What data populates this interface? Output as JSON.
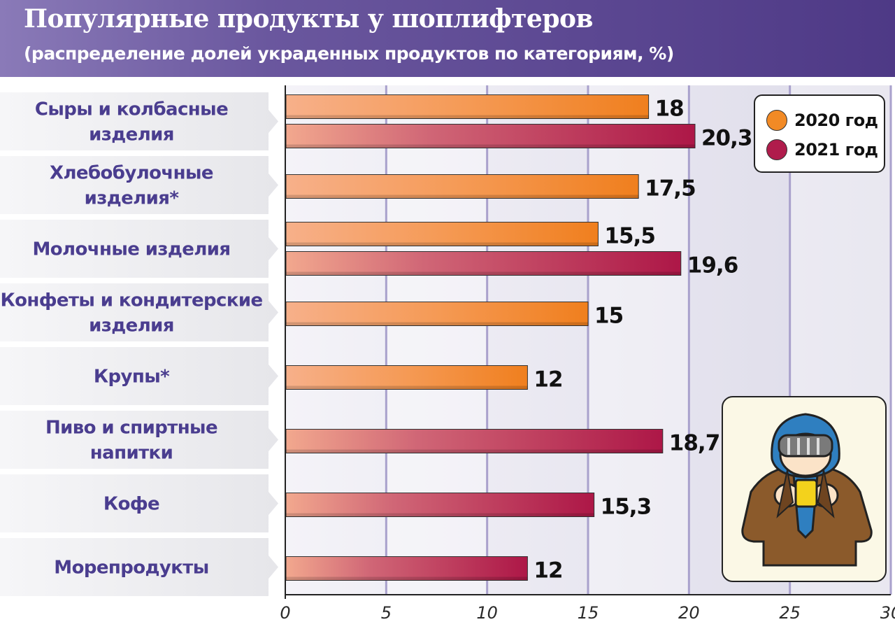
{
  "header": {
    "title": "Популярные продукты у шоплифтеров",
    "subtitle": "(распределение долей украденных продуктов по категориям, %)"
  },
  "legend": [
    {
      "label": "2020 год",
      "color": "#f28a25"
    },
    {
      "label": "2021 год",
      "color": "#b01c4c"
    }
  ],
  "chart_data": {
    "type": "bar",
    "orientation": "horizontal",
    "title": "Популярные продукты у шоплифтеров",
    "subtitle": "(распределение долей украденных продуктов по категориям, %)",
    "categories": [
      [
        "Сыры и колбасные",
        "изделия"
      ],
      [
        "Хлебобулочные",
        "изделия*"
      ],
      [
        "Молочные изделия"
      ],
      [
        "Конфеты и кондитерские",
        "изделия"
      ],
      [
        "Крупы*"
      ],
      [
        "Пиво и спиртные",
        "напитки"
      ],
      [
        "Кофе"
      ],
      [
        "Морепродукты"
      ]
    ],
    "series": [
      {
        "name": "2020 год",
        "color": "#f28a25",
        "values": [
          18,
          17.5,
          15.5,
          15,
          12,
          null,
          null,
          null
        ],
        "labels": [
          "18",
          "17,5",
          "15,5",
          "15",
          "12",
          null,
          null,
          null
        ]
      },
      {
        "name": "2021 год",
        "color": "#b01c4c",
        "values": [
          20.3,
          null,
          19.6,
          null,
          null,
          18.7,
          15.3,
          12
        ],
        "labels": [
          "20,3",
          null,
          "19,6",
          null,
          null,
          "18,7",
          "15,3",
          "12"
        ]
      }
    ],
    "xlim": [
      0,
      30
    ],
    "xticks": [
      0,
      5,
      10,
      15,
      20,
      25,
      30
    ],
    "grid": true,
    "legend_position": "top-right"
  },
  "illustration": {
    "icon": "shoplifter-icon"
  }
}
